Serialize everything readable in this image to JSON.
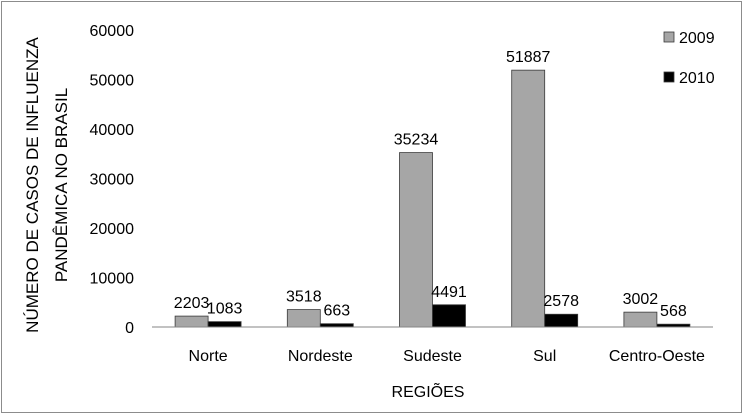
{
  "chart_data": {
    "type": "bar",
    "categories": [
      "Norte",
      "Nordeste",
      "Sudeste",
      "Sul",
      "Centro-Oeste"
    ],
    "series": [
      {
        "name": "2009",
        "values": [
          2203,
          3518,
          35234,
          51887,
          3002
        ],
        "color": "#a6a6a6"
      },
      {
        "name": "2010",
        "values": [
          1083,
          663,
          4491,
          2578,
          568
        ],
        "color": "#000000"
      }
    ],
    "xlabel": "REGIÕES",
    "ylabel": [
      "NÚMERO DE CASOS DE INFLUENZA",
      "PANDÊMICA NO BRASIL"
    ],
    "ylim": [
      0,
      60000
    ],
    "yticks": [
      0,
      10000,
      20000,
      30000,
      40000,
      50000,
      60000
    ],
    "grid": false,
    "legend_position": "top-right",
    "data_labels": true
  }
}
